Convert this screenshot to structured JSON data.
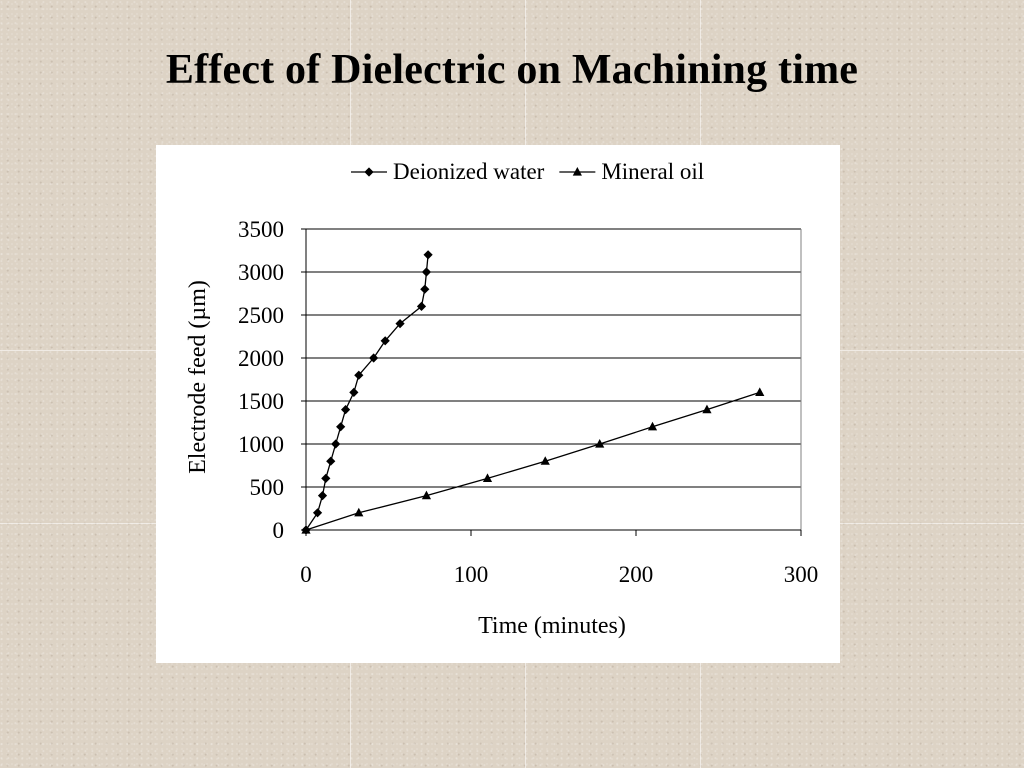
{
  "slide": {
    "title": "Effect of Dielectric on Machining time"
  },
  "chart_data": {
    "type": "line",
    "title": "",
    "xlabel": "Time (minutes)",
    "ylabel": "Electrode feed (µm)",
    "xlim": [
      0,
      300
    ],
    "ylim": [
      0,
      3500
    ],
    "xticks": [
      0,
      100,
      200,
      300
    ],
    "yticks": [
      0,
      500,
      1000,
      1500,
      2000,
      2500,
      3000,
      3500
    ],
    "grid": "horizontal",
    "legend_position": "top",
    "series": [
      {
        "name": "Deionized water",
        "marker": "diamond",
        "color": "#000000",
        "x": [
          0,
          7,
          10,
          12,
          15,
          18,
          21,
          24,
          29,
          32,
          41,
          48,
          57,
          70,
          72,
          73,
          74
        ],
        "y": [
          0,
          200,
          400,
          600,
          800,
          1000,
          1200,
          1400,
          1600,
          1800,
          2000,
          2200,
          2400,
          2600,
          2800,
          3000,
          3200
        ]
      },
      {
        "name": "Mineral oil",
        "marker": "triangle",
        "color": "#000000",
        "x": [
          0,
          32,
          73,
          110,
          145,
          178,
          210,
          243,
          275
        ],
        "y": [
          0,
          200,
          400,
          600,
          800,
          1000,
          1200,
          1400,
          1600
        ]
      }
    ]
  }
}
